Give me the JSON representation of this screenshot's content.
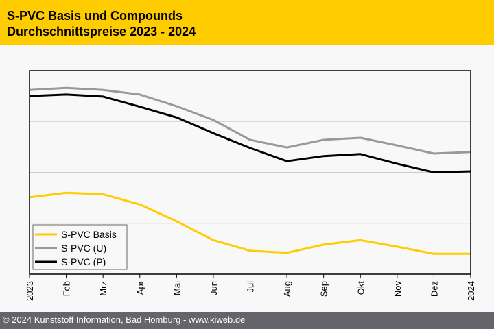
{
  "header": {
    "title_line1": "S-PVC Basis und Compounds",
    "title_line2": "Durchschnittspreise 2023 - 2024"
  },
  "footer": {
    "copyright": "© 2024 Kunststoff Information, Bad Homburg - www.kiweb.de"
  },
  "colors": {
    "header_bg": "#ffcc00",
    "footer_bg": "#646569",
    "basis": "#ffcc00",
    "u": "#999999",
    "p": "#000000"
  },
  "chart_data": {
    "type": "line",
    "title": "S-PVC Basis und Compounds Durchschnittspreise 2023 - 2024",
    "xlabel": "",
    "ylabel": "",
    "y_note": "no y-axis tick labels shown; values are relative index units (4 gridline bands)",
    "ylim": [
      0,
      4
    ],
    "grid": true,
    "legend_position": "bottom-left",
    "categories": [
      "2023",
      "Feb",
      "Mrz",
      "Apr",
      "Mai",
      "Jun",
      "Jul",
      "Aug",
      "Sep",
      "Okt",
      "Nov",
      "Dez",
      "2024"
    ],
    "series": [
      {
        "name": "S-PVC Basis",
        "color": "#ffcc00",
        "values": [
          1.51,
          1.6,
          1.57,
          1.37,
          1.04,
          0.67,
          0.46,
          0.42,
          0.58,
          0.67,
          0.54,
          0.4,
          0.4
        ]
      },
      {
        "name": "S-PVC (U)",
        "color": "#999999",
        "values": [
          3.62,
          3.66,
          3.62,
          3.53,
          3.3,
          3.03,
          2.64,
          2.49,
          2.64,
          2.68,
          2.53,
          2.37,
          2.4
        ]
      },
      {
        "name": "S-PVC (P)",
        "color": "#000000",
        "values": [
          3.5,
          3.53,
          3.49,
          3.29,
          3.08,
          2.77,
          2.48,
          2.22,
          2.32,
          2.36,
          2.17,
          2.0,
          2.02
        ]
      }
    ]
  }
}
